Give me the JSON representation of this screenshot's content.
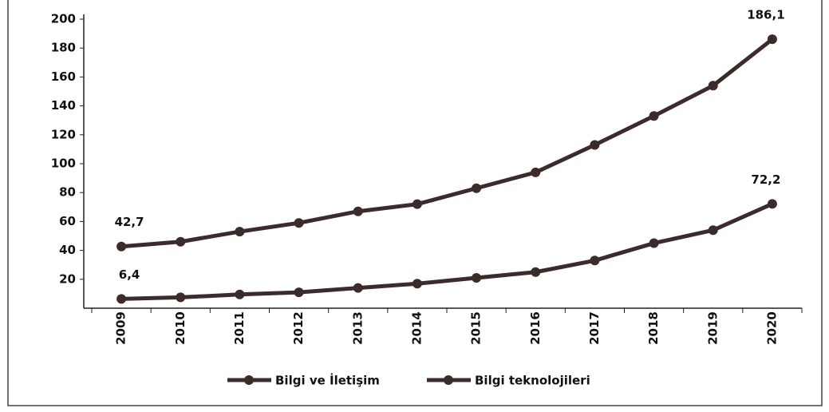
{
  "chart_data": {
    "type": "line",
    "categories": [
      "2009",
      "2010",
      "2011",
      "2012",
      "2013",
      "2014",
      "2015",
      "2016",
      "2017",
      "2018",
      "2019",
      "2020"
    ],
    "series": [
      {
        "name": "Bilgi ve İletişim",
        "color": "#3b2b2b",
        "values": [
          42.7,
          46,
          53,
          59,
          67,
          72,
          83,
          94,
          113,
          133,
          154,
          186.1
        ],
        "value_labels": [
          "42,7",
          null,
          null,
          null,
          null,
          null,
          null,
          null,
          null,
          null,
          null,
          "186,1"
        ]
      },
      {
        "name": "Bilgi teknolojileri",
        "color": "#3b2b2b",
        "values": [
          6.4,
          7.5,
          9.5,
          11,
          14,
          17,
          21,
          25,
          33,
          45,
          54,
          72.2
        ],
        "value_labels": [
          "6,4",
          null,
          null,
          null,
          null,
          null,
          null,
          null,
          null,
          null,
          null,
          "72,2"
        ]
      }
    ],
    "ylim": [
      0,
      200
    ],
    "yticks": [
      20,
      40,
      60,
      80,
      100,
      120,
      140,
      160,
      180,
      200
    ],
    "grid": false,
    "legend": "bottom"
  }
}
